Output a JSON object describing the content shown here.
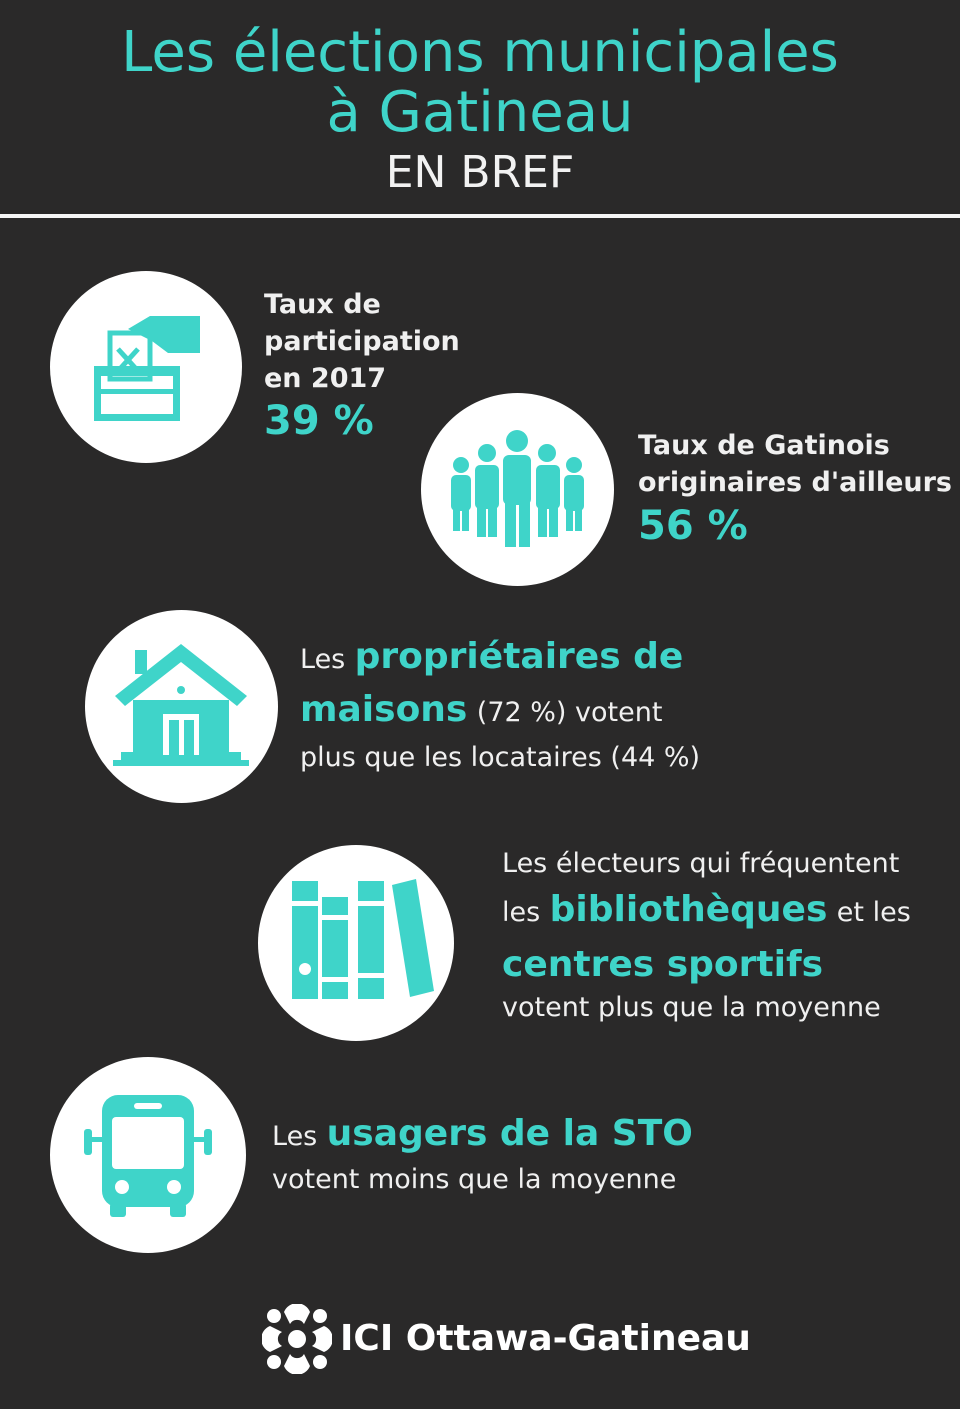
{
  "header": {
    "title_line1": "Les élections municipales",
    "title_line2": "à Gatineau",
    "subtitle": "EN BREF"
  },
  "items": {
    "participation": {
      "label_line1": "Taux de",
      "label_line2": "participation",
      "label_line3": "en 2017",
      "value": "39 %",
      "icon": "ballot-box-icon"
    },
    "origin": {
      "label_line1": "Taux de Gatinois",
      "label_line2": "originaires d'ailleurs",
      "value": "56 %",
      "icon": "people-group-icon"
    },
    "owners": {
      "prefix": "Les",
      "highlight_line1": "propriétaires de",
      "highlight_line2": "maisons",
      "rest_line2": "(72 %) votent",
      "line3": "plus que les locataires (44 %)",
      "icon": "house-icon"
    },
    "libraries": {
      "line1": "Les électeurs qui fréquentent",
      "prefix2": "les",
      "highlight2": "bibliothèques",
      "suffix2": "et les",
      "highlight3": "centres sportifs",
      "line4": "votent plus que la moyenne",
      "icon": "books-icon"
    },
    "transit": {
      "prefix": "Les",
      "highlight": "usagers de la STO",
      "line2": "votent moins que la moyenne",
      "icon": "bus-icon"
    }
  },
  "footer": {
    "logo_text": "ICI Ottawa-Gatineau",
    "logo_icon": "radio-canada-gem-icon"
  },
  "colors": {
    "background": "#2a2929",
    "accent": "#3fd4c9",
    "text": "#f0f0f0"
  }
}
